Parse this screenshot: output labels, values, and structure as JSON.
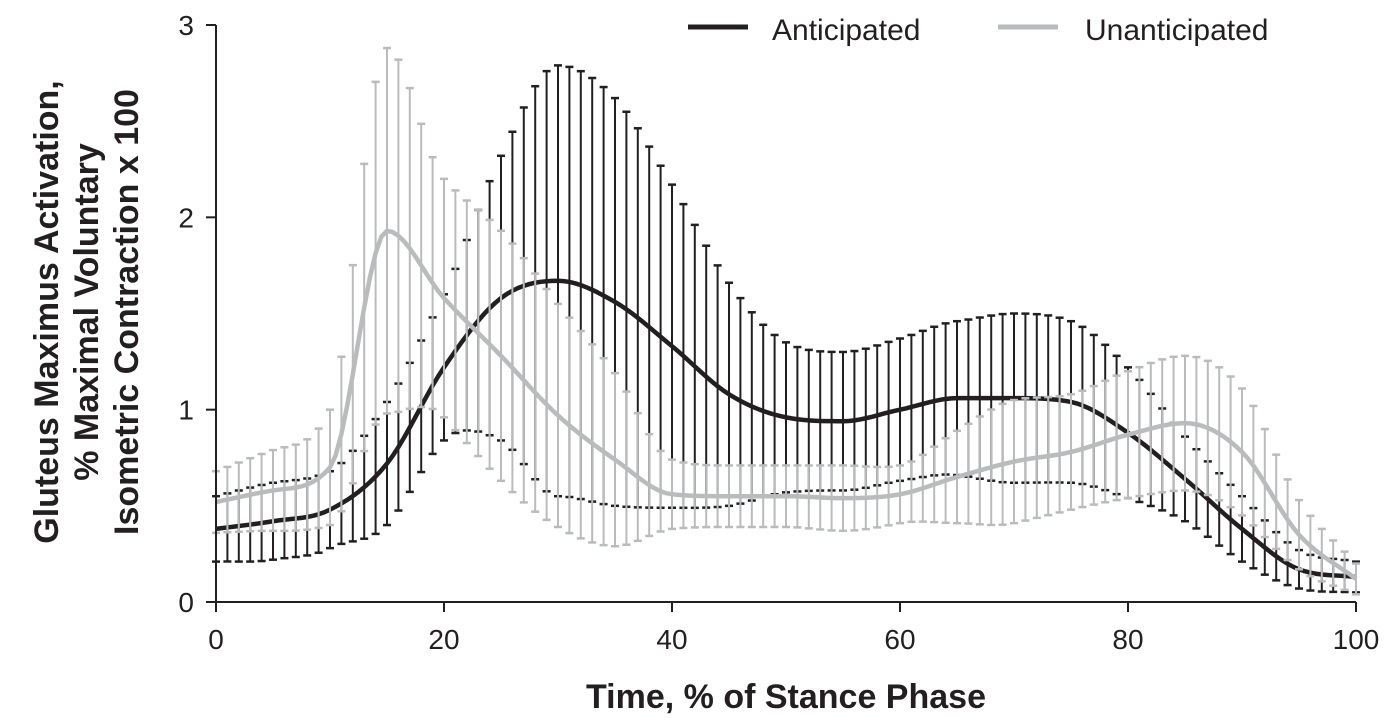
{
  "chart_data": {
    "type": "line",
    "title": "",
    "xlabel": "Time, % of Stance Phase",
    "ylabel_lines": [
      "Gluteus Maximus Activation,",
      "% Maximal Voluntary",
      "Isometric Contraction x 100"
    ],
    "xlim": [
      0,
      100
    ],
    "ylim": [
      0,
      3
    ],
    "x_ticks": [
      "0",
      "20",
      "40",
      "60",
      "80",
      "100"
    ],
    "y_ticks": [
      "0",
      "1",
      "2",
      "3"
    ],
    "grid": false,
    "legend_position": "top-right",
    "x": [
      0,
      5,
      10,
      15,
      20,
      25,
      30,
      35,
      40,
      45,
      50,
      55,
      60,
      65,
      70,
      75,
      80,
      85,
      90,
      95,
      100
    ],
    "series": [
      {
        "name": "Anticipated",
        "color": "#231f20",
        "mean": [
          0.38,
          0.42,
          0.48,
          0.72,
          1.22,
          1.58,
          1.67,
          1.56,
          1.33,
          1.08,
          0.96,
          0.94,
          1.0,
          1.06,
          1.06,
          1.04,
          0.88,
          0.64,
          0.38,
          0.17,
          0.13
        ],
        "sd": [
          0.17,
          0.2,
          0.2,
          0.32,
          0.38,
          0.74,
          1.12,
          1.06,
          0.84,
          0.58,
          0.39,
          0.36,
          0.37,
          0.4,
          0.44,
          0.42,
          0.34,
          0.22,
          0.17,
          0.1,
          0.08
        ]
      },
      {
        "name": "Unanticipated",
        "color": "#b9bbbd",
        "mean": [
          0.52,
          0.58,
          0.7,
          1.93,
          1.58,
          1.28,
          0.97,
          0.74,
          0.56,
          0.55,
          0.55,
          0.54,
          0.56,
          0.65,
          0.73,
          0.78,
          0.87,
          0.93,
          0.78,
          0.35,
          0.12
        ],
        "sd": [
          0.16,
          0.21,
          0.3,
          0.95,
          0.62,
          0.65,
          0.58,
          0.45,
          0.18,
          0.16,
          0.16,
          0.17,
          0.15,
          0.24,
          0.32,
          0.3,
          0.33,
          0.35,
          0.33,
          0.18,
          0.08
        ]
      }
    ]
  }
}
